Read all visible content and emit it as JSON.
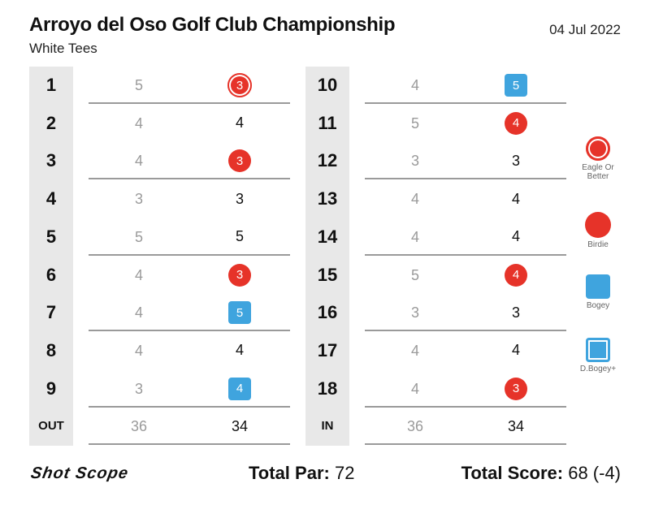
{
  "header": {
    "title": "Arroyo del Oso Golf Club Championship",
    "subtitle": "White Tees",
    "date": "04 Jul 2022"
  },
  "front_nine": {
    "holes": [
      {
        "hole": "1",
        "par": "5",
        "score": "3",
        "type": "eagle"
      },
      {
        "hole": "2",
        "par": "4",
        "score": "4",
        "type": "par"
      },
      {
        "hole": "3",
        "par": "4",
        "score": "3",
        "type": "birdie"
      },
      {
        "hole": "4",
        "par": "3",
        "score": "3",
        "type": "par"
      },
      {
        "hole": "5",
        "par": "5",
        "score": "5",
        "type": "par"
      },
      {
        "hole": "6",
        "par": "4",
        "score": "3",
        "type": "birdie"
      },
      {
        "hole": "7",
        "par": "4",
        "score": "5",
        "type": "bogey"
      },
      {
        "hole": "8",
        "par": "4",
        "score": "4",
        "type": "par"
      },
      {
        "hole": "9",
        "par": "3",
        "score": "4",
        "type": "bogey"
      }
    ],
    "total": {
      "label": "OUT",
      "par": "36",
      "score": "34"
    }
  },
  "back_nine": {
    "holes": [
      {
        "hole": "10",
        "par": "4",
        "score": "5",
        "type": "bogey"
      },
      {
        "hole": "11",
        "par": "5",
        "score": "4",
        "type": "birdie"
      },
      {
        "hole": "12",
        "par": "3",
        "score": "3",
        "type": "par"
      },
      {
        "hole": "13",
        "par": "4",
        "score": "4",
        "type": "par"
      },
      {
        "hole": "14",
        "par": "4",
        "score": "4",
        "type": "par"
      },
      {
        "hole": "15",
        "par": "5",
        "score": "4",
        "type": "birdie"
      },
      {
        "hole": "16",
        "par": "3",
        "score": "3",
        "type": "par"
      },
      {
        "hole": "17",
        "par": "4",
        "score": "4",
        "type": "par"
      },
      {
        "hole": "18",
        "par": "4",
        "score": "3",
        "type": "birdie"
      }
    ],
    "total": {
      "label": "IN",
      "par": "36",
      "score": "34"
    }
  },
  "legend": [
    {
      "label": "Eagle Or Better",
      "icon": "eagle-icon"
    },
    {
      "label": "Birdie",
      "icon": "birdie-icon"
    },
    {
      "label": "Bogey",
      "icon": "bogey-icon"
    },
    {
      "label": "D.Bogey+",
      "icon": "double-bogey-icon"
    }
  ],
  "footer": {
    "logo_text": "Shot Scope",
    "total_par_label": "Total Par:",
    "total_par_value": "72",
    "total_score_label": "Total Score:",
    "total_score_value": "68 (-4)"
  },
  "colors": {
    "birdie": "#e63329",
    "bogey": "#3fa4de",
    "hole_column": "#e8e8e8",
    "divider": "#9a9a9a"
  }
}
